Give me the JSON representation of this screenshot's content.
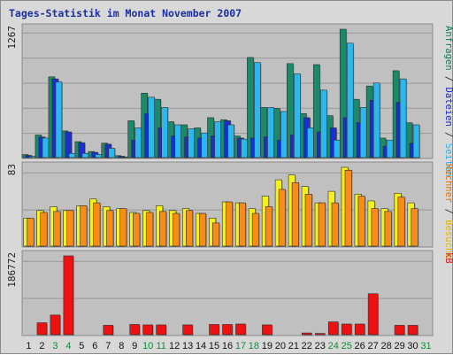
{
  "chart_data": {
    "type": "bar",
    "title": "Tages-Statistik im Monat November 2007",
    "categories": [
      "1",
      "2",
      "3",
      "4",
      "5",
      "6",
      "7",
      "8",
      "9",
      "10",
      "11",
      "12",
      "13",
      "14",
      "15",
      "16",
      "17",
      "18",
      "19",
      "20",
      "21",
      "22",
      "23",
      "24",
      "25",
      "26",
      "27",
      "28",
      "29",
      "30",
      "31"
    ],
    "weekend_days": [
      "3",
      "4",
      "10",
      "11",
      "17",
      "18",
      "24",
      "25",
      "31"
    ],
    "panels": [
      {
        "name": "top",
        "tick_label": "1267",
        "ylim": [
          0,
          1267
        ],
        "side_labels": [
          {
            "text": "Anfragen",
            "color": "#0d7a5a"
          },
          {
            "text": " / ",
            "color": "#333333"
          },
          {
            "text": "Dateien",
            "color": "#1526c8"
          },
          {
            "text": " / ",
            "color": "#333333"
          },
          {
            "text": "Seiten",
            "color": "#27b4ec"
          }
        ],
        "series": [
          {
            "name": "Anfragen",
            "color": "#1a8a6a",
            "values": [
              38,
              230,
              800,
              270,
              165,
              68,
              150,
              28,
              370,
              640,
              580,
              360,
              330,
              300,
              400,
              380,
              220,
              990,
              500,
              490,
              930,
              440,
              920,
              420,
              1267,
              580,
              710,
              200,
              860,
              350,
              0
            ]
          },
          {
            "name": "Dateien",
            "color": "#1a2fcf",
            "values": [
              30,
              210,
              780,
              260,
              155,
              60,
              140,
              22,
              180,
              440,
              300,
              220,
              210,
              200,
              220,
              370,
              200,
              200,
              210,
              180,
              230,
              400,
              260,
              300,
              400,
              350,
              570,
              120,
              550,
              150,
              0
            ]
          },
          {
            "name": "Seiten",
            "color": "#2bb8ee",
            "values": [
              20,
              200,
              750,
              50,
              50,
              40,
              100,
              15,
              300,
              600,
              500,
              330,
              290,
              250,
              360,
              330,
              190,
              940,
              500,
              460,
              830,
              300,
              670,
              180,
              1130,
              500,
              740,
              180,
              780,
              330,
              0
            ]
          }
        ]
      },
      {
        "name": "mid",
        "tick_label": "83",
        "ylim": [
          0,
          83
        ],
        "side_labels": [
          {
            "text": "Rechner",
            "color": "#e57000"
          },
          {
            "text": " / ",
            "color": "#333333"
          },
          {
            "text": "Besuche",
            "color": "#e5b800"
          }
        ],
        "series": [
          {
            "name": "Besuche",
            "color": "#f6f218",
            "values": [
              30,
              38,
              42,
              38,
              43,
              50,
              42,
              40,
              36,
              38,
              43,
              38,
              40,
              35,
              30,
              47,
              46,
              40,
              53,
              70,
              75,
              63,
              46,
              58,
              83,
              55,
              48,
              40,
              56,
              46,
              0
            ]
          },
          {
            "name": "Rechner",
            "color": "#f88c1a",
            "values": [
              30,
              36,
              37,
              38,
              43,
              46,
              38,
              40,
              35,
              36,
              37,
              35,
              38,
              35,
              25,
              47,
              46,
              35,
              42,
              60,
              67,
              55,
              46,
              46,
              80,
              53,
              40,
              37,
              52,
              40,
              0
            ]
          }
        ]
      },
      {
        "name": "bottom",
        "tick_label": "186772",
        "ylim": [
          0,
          186772
        ],
        "side_labels": [
          {
            "text": "kB",
            "color": "#e01818"
          }
        ],
        "series": [
          {
            "name": "kB",
            "color": "#ee1111",
            "values": [
              0,
              30000,
              48000,
              186772,
              0,
              0,
              24000,
              0,
              26000,
              25000,
              25000,
              0,
              25000,
              0,
              26000,
              26000,
              27000,
              0,
              25000,
              0,
              0,
              6000,
              5000,
              32000,
              27000,
              27000,
              98000,
              0,
              24000,
              24000,
              0
            ]
          }
        ]
      }
    ]
  }
}
